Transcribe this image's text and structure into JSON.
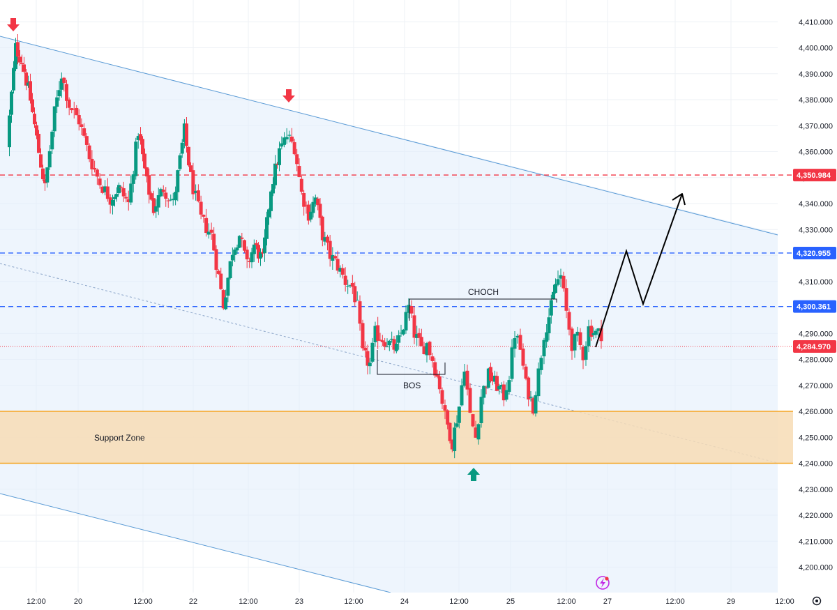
{
  "chart_data": {
    "type": "candlestick",
    "ylim": [
      4195,
      4413
    ],
    "y_ticks": [
      4200,
      4210,
      4220,
      4230,
      4240,
      4250,
      4260,
      4270,
      4280,
      4290,
      4300,
      4310,
      4320,
      4330,
      4340,
      4350,
      4360,
      4370,
      4380,
      4390,
      4400,
      4410
    ],
    "y_tick_labels": [
      "4,200.000",
      "4,210.000",
      "4,220.000",
      "4,230.000",
      "4,240.000",
      "4,250.000",
      "4,260.000",
      "4,270.000",
      "4,280.000",
      "4,290.000",
      "4,300.000",
      "4,310.000",
      "4,320.000",
      "4,330.000",
      "4,340.000",
      "4,350.000",
      "4,360.000",
      "4,370.000",
      "4,380.000",
      "4,390.000",
      "4,400.000",
      "4,410.000"
    ],
    "x_labels": [
      "12:00",
      "20",
      "12:00",
      "22",
      "12:00",
      "23",
      "12:00",
      "24",
      "12:00",
      "25",
      "12:00",
      "27",
      "12:00",
      "29",
      "12:00"
    ],
    "grid": true,
    "price_levels": [
      {
        "label": "4,350.984",
        "value": 4350.984,
        "color": "#f23645"
      },
      {
        "label": "4,320.955",
        "value": 4320.955,
        "color": "#2962ff"
      },
      {
        "label": "4,300.361",
        "value": 4300.361,
        "color": "#2962ff"
      },
      {
        "label": "4,284.970",
        "value": 4284.97,
        "color": "#f23645"
      }
    ],
    "support_zone": {
      "label": "Support Zone",
      "low": 4240,
      "high": 4260
    },
    "annotations": {
      "choch": "CHOCH",
      "bos": "BOS"
    },
    "colors": {
      "up": "#089981",
      "down": "#f23645",
      "channel": "#5b9bd5",
      "zone_fill": "#f7dcb5",
      "zone_line": "#f5a623",
      "projection": "#000000"
    },
    "candles": []
  },
  "icons": {
    "settings": "gear-icon",
    "alert": "lightning-icon"
  }
}
